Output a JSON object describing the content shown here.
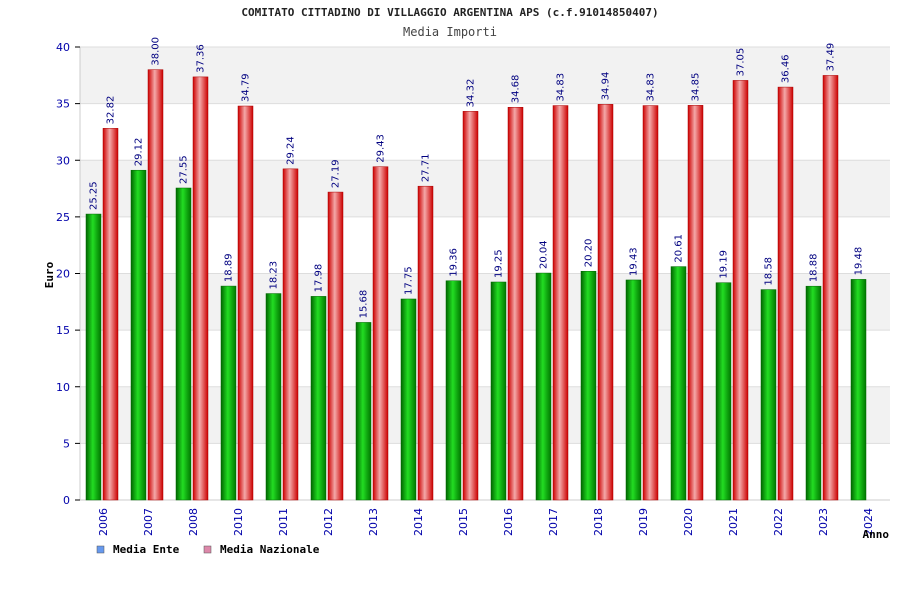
{
  "chart_data": {
    "type": "bar",
    "title": "COMITATO CITTADINO DI VILLAGGIO ARGENTINA APS (c.f.91014850407)",
    "subtitle": "Media Importi",
    "xlabel": "Anno",
    "ylabel": "Euro",
    "ylim": [
      0,
      40
    ],
    "yticks": [
      "0",
      "5",
      "10",
      "15",
      "20",
      "25",
      "30",
      "35",
      "40"
    ],
    "grid": true,
    "legend_position": "bottom-left",
    "categories": [
      "2006",
      "2007",
      "2008",
      "2010",
      "2011",
      "2012",
      "2013",
      "2014",
      "2015",
      "2016",
      "2017",
      "2018",
      "2019",
      "2020",
      "2021",
      "2022",
      "2023",
      "2024"
    ],
    "series": [
      {
        "name": "Media Ente",
        "color": "#00aa00",
        "legend_color": "#6699ee",
        "values": [
          25.25,
          29.12,
          27.55,
          18.89,
          18.23,
          17.98,
          15.68,
          17.75,
          19.36,
          19.25,
          20.04,
          20.2,
          19.43,
          20.61,
          19.19,
          18.58,
          18.88,
          19.48
        ],
        "labels": [
          "25.25",
          "29.12",
          "27.55",
          "18.89",
          "18.23",
          "17.98",
          "15.68",
          "17.75",
          "19.36",
          "19.25",
          "20.04",
          "20.20",
          "19.43",
          "20.61",
          "19.19",
          "18.58",
          "18.88",
          "19.48"
        ]
      },
      {
        "name": "Media Nazionale",
        "color": "#ee1111",
        "legend_color": "#dd88aa",
        "values": [
          32.82,
          38.0,
          37.36,
          34.79,
          29.24,
          27.19,
          29.43,
          27.71,
          34.32,
          34.68,
          34.83,
          34.94,
          34.83,
          34.85,
          37.05,
          36.46,
          37.49,
          null
        ],
        "labels": [
          "32.82",
          "38.00",
          "37.36",
          "34.79",
          "29.24",
          "27.19",
          "29.43",
          "27.71",
          "34.32",
          "34.68",
          "34.83",
          "34.94",
          "34.83",
          "34.85",
          "37.05",
          "36.46",
          "37.49",
          null
        ]
      }
    ]
  }
}
